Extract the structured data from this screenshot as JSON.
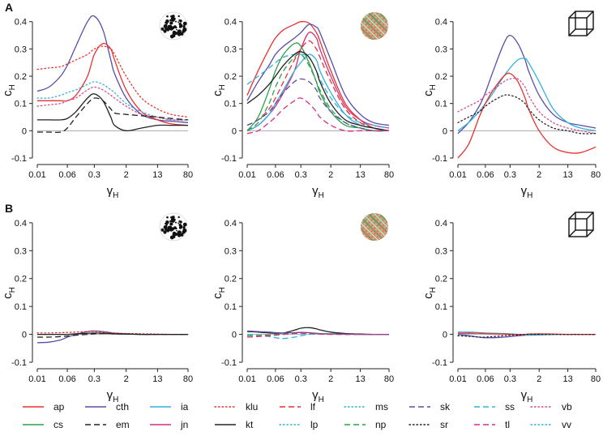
{
  "figure": {
    "panel_letters": [
      "A",
      "B"
    ],
    "x_symbol": "γ",
    "x_subscript": "H",
    "y_symbol": "c",
    "y_subscript": "H",
    "x_ticks": [
      "0.01",
      "0.06",
      "0.3",
      "2",
      "13",
      "80"
    ],
    "y_ticks": [
      "-0.1",
      "0",
      "0.1",
      "0.2",
      "0.3",
      "0.4"
    ],
    "column_icons": [
      "dots-texture-icon",
      "plaid-texture-icon",
      "cube-wireframe-icon"
    ]
  },
  "legend": [
    {
      "name": "ap",
      "color": "#e8312f",
      "dash": "solid"
    },
    {
      "name": "cth",
      "color": "#5a4ba8",
      "dash": "solid"
    },
    {
      "name": "ia",
      "color": "#35b0dd",
      "dash": "solid"
    },
    {
      "name": "klu",
      "color": "#e8312f",
      "dash": "dot"
    },
    {
      "name": "lf",
      "color": "#e8312f",
      "dash": "dash"
    },
    {
      "name": "ms",
      "color": "#35b0dd",
      "dash": "dot"
    },
    {
      "name": "sk",
      "color": "#5a4ba8",
      "dash": "dash"
    },
    {
      "name": "ss",
      "color": "#35b0dd",
      "dash": "dash"
    },
    {
      "name": "vb",
      "color": "#d64a8a",
      "dash": "dot"
    },
    {
      "name": "cs",
      "color": "#2ea04a",
      "dash": "solid"
    },
    {
      "name": "em",
      "color": "#222222",
      "dash": "dash"
    },
    {
      "name": "jn",
      "color": "#d4317d",
      "dash": "solid"
    },
    {
      "name": "kt",
      "color": "#222222",
      "dash": "solid"
    },
    {
      "name": "lp",
      "color": "#35b0dd",
      "dash": "dot"
    },
    {
      "name": "np",
      "color": "#2ea04a",
      "dash": "dash"
    },
    {
      "name": "sr",
      "color": "#222222",
      "dash": "dot"
    },
    {
      "name": "tl",
      "color": "#d4317d",
      "dash": "dash"
    },
    {
      "name": "vv",
      "color": "#35b0dd",
      "dash": "dot"
    }
  ],
  "chart_data": [
    {
      "type": "line",
      "title": "A - dots texture",
      "xlabel": "γH",
      "ylabel": "cH",
      "x_scale": "log",
      "xlim": [
        0.01,
        80
      ],
      "ylim": [
        -0.1,
        0.42
      ],
      "x": [
        0.01,
        0.02,
        0.04,
        0.06,
        0.1,
        0.2,
        0.3,
        0.5,
        0.8,
        1,
        2,
        5,
        13,
        30,
        80
      ],
      "series": [
        {
          "name": "cth",
          "values": [
            0.145,
            0.16,
            0.2,
            0.24,
            0.31,
            0.4,
            0.42,
            0.37,
            0.26,
            0.21,
            0.12,
            0.06,
            0.04,
            0.035,
            0.03
          ]
        },
        {
          "name": "ap",
          "values": [
            0.11,
            0.11,
            0.11,
            0.11,
            0.13,
            0.2,
            0.28,
            0.32,
            0.3,
            0.26,
            0.15,
            0.07,
            0.04,
            0.025,
            0.02
          ]
        },
        {
          "name": "klu",
          "values": [
            0.225,
            0.23,
            0.235,
            0.245,
            0.26,
            0.28,
            0.3,
            0.31,
            0.3,
            0.28,
            0.2,
            0.12,
            0.08,
            0.06,
            0.05
          ]
        },
        {
          "name": "ms",
          "values": [
            0.12,
            0.12,
            0.13,
            0.14,
            0.15,
            0.17,
            0.18,
            0.17,
            0.15,
            0.14,
            0.1,
            0.07,
            0.05,
            0.04,
            0.04
          ]
        },
        {
          "name": "vb",
          "values": [
            0.09,
            0.095,
            0.1,
            0.11,
            0.12,
            0.15,
            0.16,
            0.15,
            0.13,
            0.12,
            0.09,
            0.06,
            0.05,
            0.04,
            0.04
          ]
        },
        {
          "name": "kt",
          "values": [
            0.04,
            0.04,
            0.04,
            0.045,
            0.07,
            0.12,
            0.135,
            0.11,
            0.05,
            0.02,
            0.0,
            0.01,
            0.02,
            0.02,
            0.02
          ]
        },
        {
          "name": "em",
          "values": [
            -0.005,
            -0.005,
            -0.005,
            0.01,
            0.05,
            0.1,
            0.12,
            0.11,
            0.08,
            0.065,
            0.06,
            0.055,
            0.05,
            0.045,
            0.04
          ]
        }
      ]
    },
    {
      "type": "line",
      "title": "A - plaid texture",
      "xlabel": "γH",
      "ylabel": "cH",
      "x_scale": "log",
      "xlim": [
        0.01,
        80
      ],
      "ylim": [
        -0.1,
        0.42
      ],
      "x": [
        0.01,
        0.02,
        0.04,
        0.06,
        0.1,
        0.2,
        0.3,
        0.5,
        0.8,
        1,
        2,
        5,
        13,
        30,
        80
      ],
      "series": [
        {
          "name": "ap",
          "values": [
            0.13,
            0.22,
            0.3,
            0.34,
            0.37,
            0.39,
            0.4,
            0.395,
            0.36,
            0.33,
            0.22,
            0.1,
            0.04,
            0.01,
            0.0
          ]
        },
        {
          "name": "cth",
          "values": [
            0.11,
            0.18,
            0.24,
            0.28,
            0.31,
            0.34,
            0.36,
            0.39,
            0.38,
            0.36,
            0.26,
            0.13,
            0.06,
            0.03,
            0.02
          ]
        },
        {
          "name": "jn",
          "values": [
            0.0,
            0.02,
            0.06,
            0.09,
            0.14,
            0.22,
            0.3,
            0.36,
            0.34,
            0.3,
            0.2,
            0.09,
            0.04,
            0.02,
            0.01
          ]
        },
        {
          "name": "lf",
          "values": [
            0.02,
            0.04,
            0.08,
            0.12,
            0.18,
            0.26,
            0.3,
            0.33,
            0.3,
            0.27,
            0.18,
            0.08,
            0.03,
            0.01,
            0.0
          ]
        },
        {
          "name": "ss",
          "values": [
            0.17,
            0.2,
            0.23,
            0.25,
            0.27,
            0.28,
            0.28,
            0.27,
            0.22,
            0.19,
            0.12,
            0.06,
            0.03,
            0.02,
            0.01
          ]
        },
        {
          "name": "ia",
          "values": [
            0.0,
            0.02,
            0.06,
            0.1,
            0.15,
            0.22,
            0.25,
            0.28,
            0.26,
            0.22,
            0.14,
            0.06,
            0.02,
            0.01,
            0.0
          ]
        },
        {
          "name": "cs",
          "values": [
            0.0,
            0.05,
            0.15,
            0.22,
            0.28,
            0.32,
            0.31,
            0.25,
            0.18,
            0.14,
            0.07,
            0.02,
            0.01,
            0.0,
            0.0
          ]
        },
        {
          "name": "np",
          "values": [
            0.0,
            0.03,
            0.1,
            0.16,
            0.22,
            0.27,
            0.28,
            0.24,
            0.18,
            0.15,
            0.08,
            0.03,
            0.01,
            0.0,
            0.0
          ]
        },
        {
          "name": "kt",
          "values": [
            0.1,
            0.13,
            0.17,
            0.2,
            0.24,
            0.28,
            0.29,
            0.27,
            0.22,
            0.18,
            0.1,
            0.04,
            0.02,
            0.01,
            0.0
          ]
        },
        {
          "name": "sk",
          "values": [
            0.02,
            0.04,
            0.07,
            0.1,
            0.14,
            0.18,
            0.19,
            0.18,
            0.15,
            0.12,
            0.07,
            0.03,
            0.01,
            0.0,
            0.0
          ]
        },
        {
          "name": "tl",
          "values": [
            -0.01,
            0.0,
            0.03,
            0.05,
            0.08,
            0.11,
            0.12,
            0.1,
            0.07,
            0.05,
            0.02,
            0.0,
            0.0,
            0.0,
            0.0
          ]
        }
      ]
    },
    {
      "type": "line",
      "title": "A - cube",
      "xlabel": "γH",
      "ylabel": "cH",
      "x_scale": "log",
      "xlim": [
        0.01,
        80
      ],
      "ylim": [
        -0.1,
        0.42
      ],
      "x": [
        0.01,
        0.02,
        0.04,
        0.06,
        0.1,
        0.2,
        0.3,
        0.5,
        0.8,
        1,
        2,
        5,
        13,
        30,
        80
      ],
      "series": [
        {
          "name": "cth",
          "values": [
            -0.01,
            0.03,
            0.09,
            0.14,
            0.22,
            0.32,
            0.35,
            0.32,
            0.26,
            0.22,
            0.13,
            0.06,
            0.03,
            0.02,
            0.01
          ]
        },
        {
          "name": "ia",
          "values": [
            0.0,
            0.03,
            0.07,
            0.1,
            0.14,
            0.2,
            0.23,
            0.26,
            0.265,
            0.25,
            0.18,
            0.08,
            0.03,
            0.01,
            0.0
          ]
        },
        {
          "name": "ap",
          "values": [
            -0.1,
            -0.05,
            0.05,
            0.1,
            0.15,
            0.2,
            0.21,
            0.18,
            0.12,
            0.08,
            0.0,
            -0.06,
            -0.08,
            -0.08,
            -0.06
          ]
        },
        {
          "name": "vb",
          "values": [
            0.07,
            0.09,
            0.11,
            0.13,
            0.15,
            0.18,
            0.19,
            0.19,
            0.16,
            0.13,
            0.07,
            0.03,
            0.01,
            0.0,
            -0.01
          ]
        },
        {
          "name": "sr",
          "values": [
            0.03,
            0.05,
            0.07,
            0.09,
            0.11,
            0.13,
            0.13,
            0.12,
            0.1,
            0.08,
            0.04,
            0.01,
            0.0,
            -0.01,
            -0.01
          ]
        }
      ]
    },
    {
      "type": "line",
      "title": "B - dots texture",
      "xlabel": "γH",
      "ylabel": "cH",
      "x_scale": "log",
      "xlim": [
        0.01,
        80
      ],
      "ylim": [
        -0.1,
        0.42
      ],
      "x": [
        0.01,
        0.02,
        0.04,
        0.06,
        0.1,
        0.2,
        0.3,
        0.5,
        0.8,
        1,
        2,
        5,
        13,
        30,
        80
      ],
      "series": [
        {
          "name": "cth",
          "values": [
            -0.03,
            -0.028,
            -0.02,
            -0.01,
            0.0,
            0.01,
            0.012,
            0.01,
            0.006,
            0.004,
            0.002,
            0.0,
            0.0,
            0.0,
            0.0
          ]
        },
        {
          "name": "klu",
          "values": [
            0.005,
            0.005,
            0.006,
            0.007,
            0.008,
            0.01,
            0.01,
            0.008,
            0.006,
            0.005,
            0.003,
            0.002,
            0.001,
            0.0,
            0.0
          ]
        },
        {
          "name": "em",
          "values": [
            -0.01,
            -0.01,
            -0.008,
            -0.006,
            -0.003,
            0.0,
            0.002,
            0.003,
            0.003,
            0.002,
            0.001,
            0.0,
            0.0,
            0.0,
            0.0
          ]
        },
        {
          "name": "kt",
          "values": [
            0.0,
            0.0,
            0.0,
            0.0,
            0.002,
            0.004,
            0.005,
            0.004,
            0.003,
            0.002,
            0.001,
            0.0,
            0.0,
            0.0,
            0.0
          ]
        }
      ]
    },
    {
      "type": "line",
      "title": "B - plaid texture",
      "xlabel": "γH",
      "ylabel": "cH",
      "x_scale": "log",
      "xlim": [
        0.01,
        80
      ],
      "ylim": [
        -0.1,
        0.42
      ],
      "x": [
        0.01,
        0.02,
        0.04,
        0.06,
        0.1,
        0.2,
        0.3,
        0.5,
        0.8,
        1,
        2,
        5,
        13,
        30,
        80
      ],
      "series": [
        {
          "name": "kt",
          "values": [
            0.01,
            0.008,
            0.005,
            0.004,
            0.005,
            0.015,
            0.022,
            0.024,
            0.02,
            0.016,
            0.008,
            0.003,
            0.001,
            0.0,
            0.0
          ]
        },
        {
          "name": "ss",
          "values": [
            0.0,
            -0.003,
            -0.008,
            -0.012,
            -0.015,
            -0.01,
            -0.005,
            0.0,
            0.002,
            0.002,
            0.001,
            0.0,
            0.0,
            0.0,
            0.0
          ]
        },
        {
          "name": "cth",
          "values": [
            0.012,
            0.01,
            0.008,
            0.006,
            0.005,
            0.006,
            0.007,
            0.006,
            0.004,
            0.003,
            0.002,
            0.001,
            0.0,
            0.0,
            0.0
          ]
        },
        {
          "name": "np",
          "values": [
            -0.005,
            -0.004,
            -0.002,
            0.0,
            0.002,
            0.004,
            0.005,
            0.004,
            0.003,
            0.002,
            0.001,
            0.0,
            0.0,
            0.0,
            0.0
          ]
        },
        {
          "name": "tl",
          "values": [
            -0.01,
            -0.008,
            -0.005,
            -0.003,
            0.0,
            0.003,
            0.004,
            0.003,
            0.002,
            0.001,
            0.0,
            0.0,
            0.0,
            0.0,
            0.0
          ]
        }
      ]
    },
    {
      "type": "line",
      "title": "B - cube",
      "xlabel": "γH",
      "ylabel": "cH",
      "x_scale": "log",
      "xlim": [
        0.01,
        80
      ],
      "ylim": [
        -0.1,
        0.42
      ],
      "x": [
        0.01,
        0.02,
        0.04,
        0.06,
        0.1,
        0.2,
        0.3,
        0.5,
        0.8,
        1,
        2,
        5,
        13,
        30,
        80
      ],
      "series": [
        {
          "name": "cth",
          "values": [
            0.0,
            -0.005,
            -0.01,
            -0.012,
            -0.012,
            -0.01,
            -0.008,
            -0.005,
            -0.003,
            -0.002,
            0.0,
            0.0,
            0.0,
            0.0,
            0.0
          ]
        },
        {
          "name": "ia",
          "values": [
            0.008,
            0.008,
            0.006,
            0.005,
            0.004,
            0.003,
            0.002,
            0.0,
            -0.002,
            -0.003,
            -0.002,
            -0.001,
            0.0,
            0.0,
            0.0
          ]
        },
        {
          "name": "ap",
          "values": [
            0.004,
            0.004,
            0.004,
            0.003,
            0.002,
            0.001,
            0.0,
            0.0,
            0.0,
            0.001,
            0.002,
            0.001,
            0.0,
            0.0,
            0.0
          ]
        },
        {
          "name": "sr",
          "values": [
            -0.005,
            -0.007,
            -0.01,
            -0.01,
            -0.008,
            -0.005,
            -0.003,
            -0.002,
            -0.001,
            0.0,
            0.0,
            0.0,
            0.0,
            0.0,
            0.0
          ]
        }
      ]
    }
  ]
}
